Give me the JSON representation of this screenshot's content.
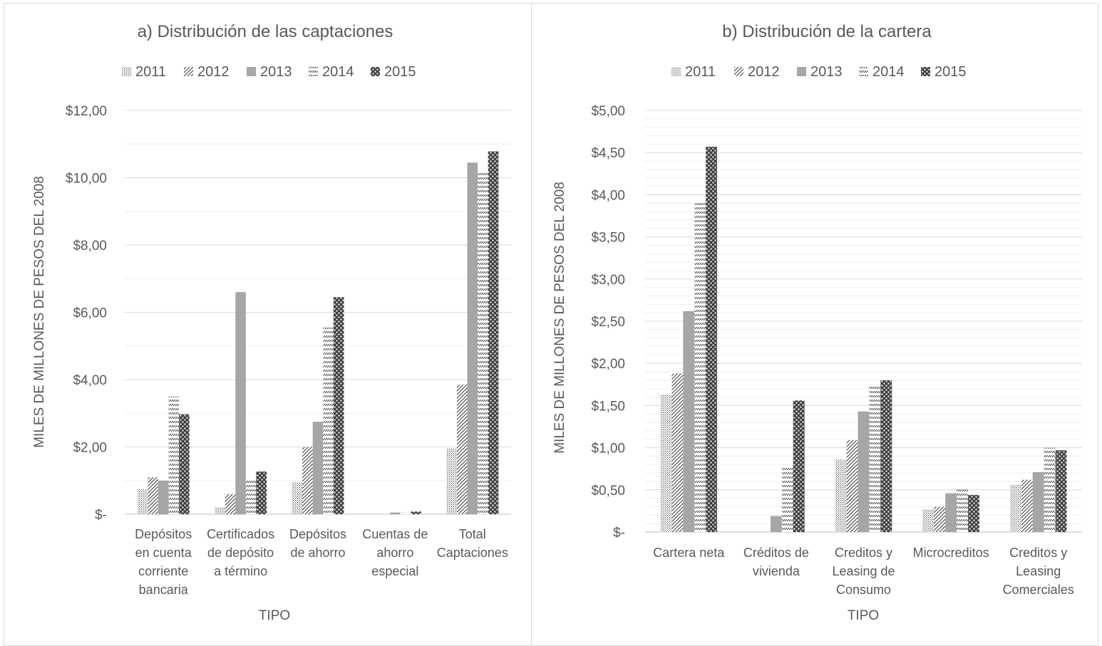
{
  "chart_data": [
    {
      "type": "bar",
      "title": "a) Distribución de las captaciones",
      "xlabel": "TIPO",
      "ylabel": "MILES DE MILLONES DE PESOS DEL 2008",
      "ylim": [
        0,
        12
      ],
      "ytick_values": [
        0,
        2,
        4,
        6,
        8,
        10,
        12
      ],
      "ytick_labels": [
        "$-",
        "$2,00",
        "$4,00",
        "$6,00",
        "$8,00",
        "$10,00",
        "$12,00"
      ],
      "minor_step": 1,
      "grid": true,
      "legend_position": "top",
      "categories": [
        [
          "Depósitos",
          "en cuenta",
          "corriente",
          "bancaria"
        ],
        [
          "Certificados",
          "de depósito",
          "a término"
        ],
        [
          "Depósitos",
          "de ahorro"
        ],
        [
          "Cuentas de",
          "ahorro",
          "especial"
        ],
        [
          "Total",
          "Captaciones"
        ]
      ],
      "series": [
        {
          "name": "2011",
          "values": [
            0.75,
            0.2,
            0.95,
            0.0,
            1.95
          ]
        },
        {
          "name": "2012",
          "values": [
            1.1,
            0.6,
            2.0,
            0.0,
            3.85
          ]
        },
        {
          "name": "2013",
          "values": [
            1.0,
            6.6,
            2.75,
            0.05,
            10.45
          ]
        },
        {
          "name": "2014",
          "values": [
            3.5,
            1.0,
            5.55,
            0.05,
            10.2
          ]
        },
        {
          "name": "2015",
          "values": [
            2.97,
            1.27,
            6.45,
            0.08,
            10.78
          ]
        }
      ]
    },
    {
      "type": "bar",
      "title": "b) Distribución de la cartera",
      "xlabel": "TIPO",
      "ylabel": "MILES DE MILLONES DE PESOS DEL 2008",
      "ylim": [
        0,
        5
      ],
      "ytick_values": [
        0,
        0.5,
        1,
        1.5,
        2,
        2.5,
        3,
        3.5,
        4,
        4.5,
        5
      ],
      "ytick_labels": [
        "$-",
        "$0,50",
        "$1,00",
        "$1,50",
        "$2,00",
        "$2,50",
        "$3,00",
        "$3,50",
        "$4,00",
        "$4,50",
        "$5,00"
      ],
      "minor_step": 0.1,
      "grid": true,
      "legend_position": "top",
      "categories": [
        [
          "Cartera neta"
        ],
        [
          "Créditos de",
          "vivienda"
        ],
        [
          "Creditos y",
          "Leasing de",
          "Consumo"
        ],
        [
          "Microcreditos"
        ],
        [
          "Creditos y",
          "Leasing",
          "Comerciales"
        ]
      ],
      "series": [
        {
          "name": "2011",
          "values": [
            1.63,
            0.0,
            0.86,
            0.27,
            0.56
          ]
        },
        {
          "name": "2012",
          "values": [
            1.88,
            0.0,
            1.09,
            0.3,
            0.62
          ]
        },
        {
          "name": "2013",
          "values": [
            2.62,
            0.19,
            1.43,
            0.46,
            0.71
          ]
        },
        {
          "name": "2014",
          "values": [
            3.9,
            0.76,
            1.75,
            0.53,
            1.0
          ]
        },
        {
          "name": "2015",
          "values": [
            4.57,
            1.56,
            1.8,
            0.44,
            0.97
          ]
        }
      ]
    }
  ]
}
